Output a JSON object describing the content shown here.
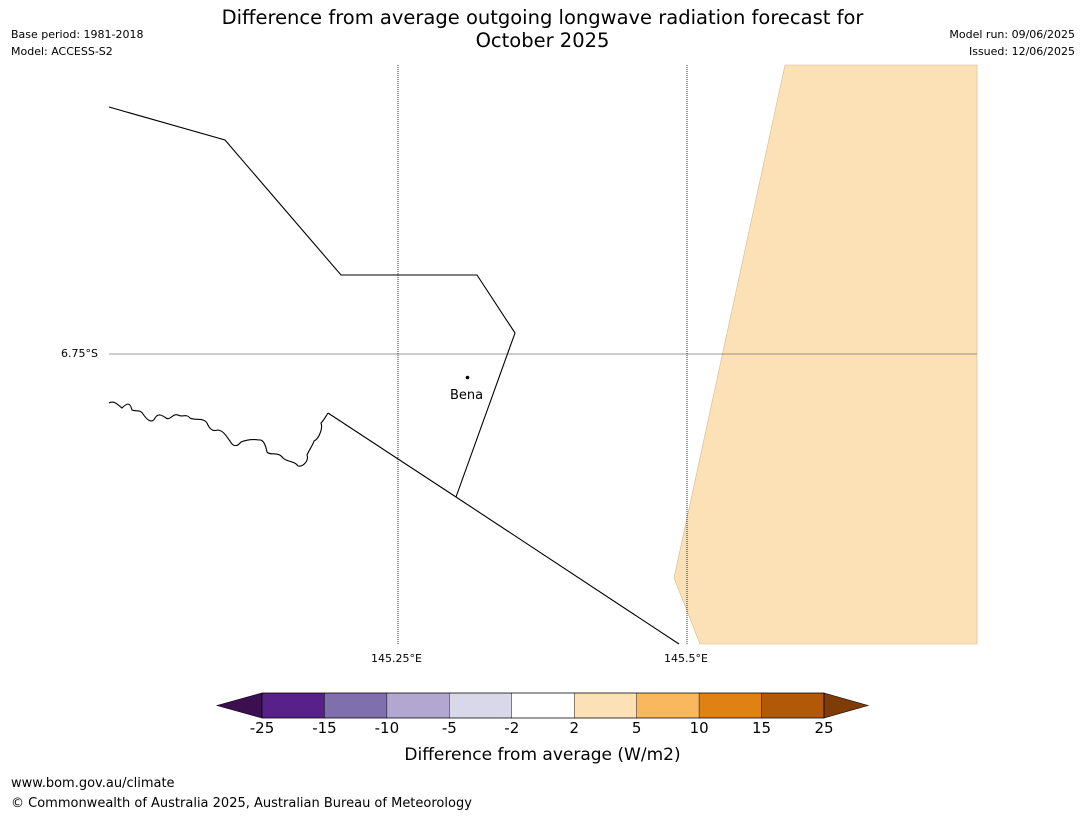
{
  "header": {
    "title": "Difference from average outgoing longwave radiation forecast for\nOctober 2025",
    "base_period": "Base period: 1981-2018",
    "model": "Model: ACCESS-S2",
    "model_run": "Model run: 09/06/2025",
    "issued": "Issued: 12/06/2025"
  },
  "map": {
    "lat_label": "6.75°S",
    "lon_labels": [
      "145.25°E",
      "145.5°E"
    ],
    "place": "Bena",
    "shaded_category_color": "#fce0b6"
  },
  "colorbar": {
    "label": "Difference from average (W/m2)",
    "ticks": [
      "-25",
      "-15",
      "-10",
      "-5",
      "-2",
      "2",
      "5",
      "10",
      "15",
      "25"
    ],
    "colors": [
      "#3b0f50",
      "#58218a",
      "#7f6fad",
      "#b1a7d1",
      "#d9d8ea",
      "#ffffff",
      "#fce0b6",
      "#f9b75e",
      "#e08213",
      "#b15906",
      "#7f3b08"
    ]
  },
  "footer": {
    "url": "www.bom.gov.au/climate",
    "copyright": "© Commonwealth of Australia 2025, Australian Bureau of Meteorology"
  }
}
